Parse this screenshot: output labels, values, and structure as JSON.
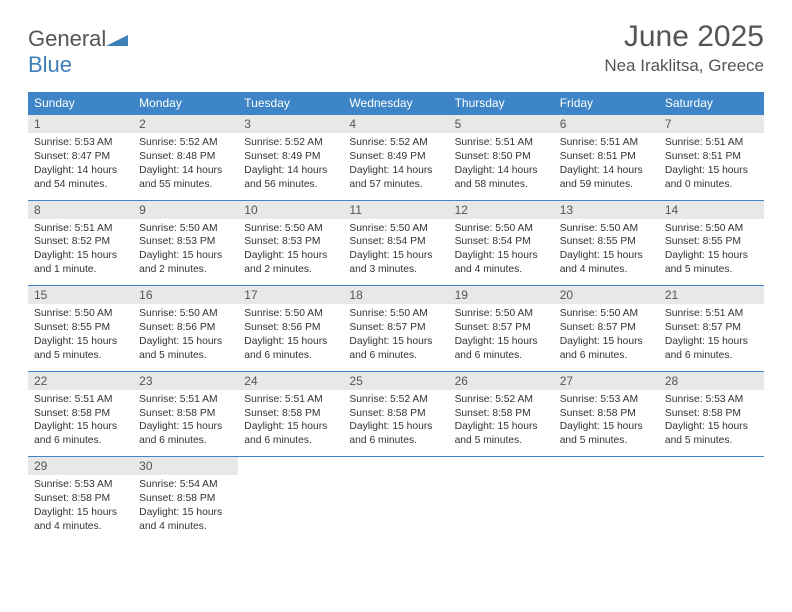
{
  "logo": {
    "text_general": "General",
    "text_blue": "Blue"
  },
  "title": "June 2025",
  "location": "Nea Iraklitsa, Greece",
  "colors": {
    "header_bg": "#3d85c6",
    "header_text": "#ffffff",
    "daynum_bg": "#e8e8e8",
    "body_text": "#333333",
    "title_text": "#555555",
    "border": "#3d85c6"
  },
  "day_labels": [
    "Sunday",
    "Monday",
    "Tuesday",
    "Wednesday",
    "Thursday",
    "Friday",
    "Saturday"
  ],
  "weeks": [
    [
      {
        "n": "1",
        "sr": "Sunrise: 5:53 AM",
        "ss": "Sunset: 8:47 PM",
        "dl": "Daylight: 14 hours and 54 minutes."
      },
      {
        "n": "2",
        "sr": "Sunrise: 5:52 AM",
        "ss": "Sunset: 8:48 PM",
        "dl": "Daylight: 14 hours and 55 minutes."
      },
      {
        "n": "3",
        "sr": "Sunrise: 5:52 AM",
        "ss": "Sunset: 8:49 PM",
        "dl": "Daylight: 14 hours and 56 minutes."
      },
      {
        "n": "4",
        "sr": "Sunrise: 5:52 AM",
        "ss": "Sunset: 8:49 PM",
        "dl": "Daylight: 14 hours and 57 minutes."
      },
      {
        "n": "5",
        "sr": "Sunrise: 5:51 AM",
        "ss": "Sunset: 8:50 PM",
        "dl": "Daylight: 14 hours and 58 minutes."
      },
      {
        "n": "6",
        "sr": "Sunrise: 5:51 AM",
        "ss": "Sunset: 8:51 PM",
        "dl": "Daylight: 14 hours and 59 minutes."
      },
      {
        "n": "7",
        "sr": "Sunrise: 5:51 AM",
        "ss": "Sunset: 8:51 PM",
        "dl": "Daylight: 15 hours and 0 minutes."
      }
    ],
    [
      {
        "n": "8",
        "sr": "Sunrise: 5:51 AM",
        "ss": "Sunset: 8:52 PM",
        "dl": "Daylight: 15 hours and 1 minute."
      },
      {
        "n": "9",
        "sr": "Sunrise: 5:50 AM",
        "ss": "Sunset: 8:53 PM",
        "dl": "Daylight: 15 hours and 2 minutes."
      },
      {
        "n": "10",
        "sr": "Sunrise: 5:50 AM",
        "ss": "Sunset: 8:53 PM",
        "dl": "Daylight: 15 hours and 2 minutes."
      },
      {
        "n": "11",
        "sr": "Sunrise: 5:50 AM",
        "ss": "Sunset: 8:54 PM",
        "dl": "Daylight: 15 hours and 3 minutes."
      },
      {
        "n": "12",
        "sr": "Sunrise: 5:50 AM",
        "ss": "Sunset: 8:54 PM",
        "dl": "Daylight: 15 hours and 4 minutes."
      },
      {
        "n": "13",
        "sr": "Sunrise: 5:50 AM",
        "ss": "Sunset: 8:55 PM",
        "dl": "Daylight: 15 hours and 4 minutes."
      },
      {
        "n": "14",
        "sr": "Sunrise: 5:50 AM",
        "ss": "Sunset: 8:55 PM",
        "dl": "Daylight: 15 hours and 5 minutes."
      }
    ],
    [
      {
        "n": "15",
        "sr": "Sunrise: 5:50 AM",
        "ss": "Sunset: 8:55 PM",
        "dl": "Daylight: 15 hours and 5 minutes."
      },
      {
        "n": "16",
        "sr": "Sunrise: 5:50 AM",
        "ss": "Sunset: 8:56 PM",
        "dl": "Daylight: 15 hours and 5 minutes."
      },
      {
        "n": "17",
        "sr": "Sunrise: 5:50 AM",
        "ss": "Sunset: 8:56 PM",
        "dl": "Daylight: 15 hours and 6 minutes."
      },
      {
        "n": "18",
        "sr": "Sunrise: 5:50 AM",
        "ss": "Sunset: 8:57 PM",
        "dl": "Daylight: 15 hours and 6 minutes."
      },
      {
        "n": "19",
        "sr": "Sunrise: 5:50 AM",
        "ss": "Sunset: 8:57 PM",
        "dl": "Daylight: 15 hours and 6 minutes."
      },
      {
        "n": "20",
        "sr": "Sunrise: 5:50 AM",
        "ss": "Sunset: 8:57 PM",
        "dl": "Daylight: 15 hours and 6 minutes."
      },
      {
        "n": "21",
        "sr": "Sunrise: 5:51 AM",
        "ss": "Sunset: 8:57 PM",
        "dl": "Daylight: 15 hours and 6 minutes."
      }
    ],
    [
      {
        "n": "22",
        "sr": "Sunrise: 5:51 AM",
        "ss": "Sunset: 8:58 PM",
        "dl": "Daylight: 15 hours and 6 minutes."
      },
      {
        "n": "23",
        "sr": "Sunrise: 5:51 AM",
        "ss": "Sunset: 8:58 PM",
        "dl": "Daylight: 15 hours and 6 minutes."
      },
      {
        "n": "24",
        "sr": "Sunrise: 5:51 AM",
        "ss": "Sunset: 8:58 PM",
        "dl": "Daylight: 15 hours and 6 minutes."
      },
      {
        "n": "25",
        "sr": "Sunrise: 5:52 AM",
        "ss": "Sunset: 8:58 PM",
        "dl": "Daylight: 15 hours and 6 minutes."
      },
      {
        "n": "26",
        "sr": "Sunrise: 5:52 AM",
        "ss": "Sunset: 8:58 PM",
        "dl": "Daylight: 15 hours and 5 minutes."
      },
      {
        "n": "27",
        "sr": "Sunrise: 5:53 AM",
        "ss": "Sunset: 8:58 PM",
        "dl": "Daylight: 15 hours and 5 minutes."
      },
      {
        "n": "28",
        "sr": "Sunrise: 5:53 AM",
        "ss": "Sunset: 8:58 PM",
        "dl": "Daylight: 15 hours and 5 minutes."
      }
    ],
    [
      {
        "n": "29",
        "sr": "Sunrise: 5:53 AM",
        "ss": "Sunset: 8:58 PM",
        "dl": "Daylight: 15 hours and 4 minutes."
      },
      {
        "n": "30",
        "sr": "Sunrise: 5:54 AM",
        "ss": "Sunset: 8:58 PM",
        "dl": "Daylight: 15 hours and 4 minutes."
      },
      {
        "empty": true
      },
      {
        "empty": true
      },
      {
        "empty": true
      },
      {
        "empty": true
      },
      {
        "empty": true
      }
    ]
  ]
}
